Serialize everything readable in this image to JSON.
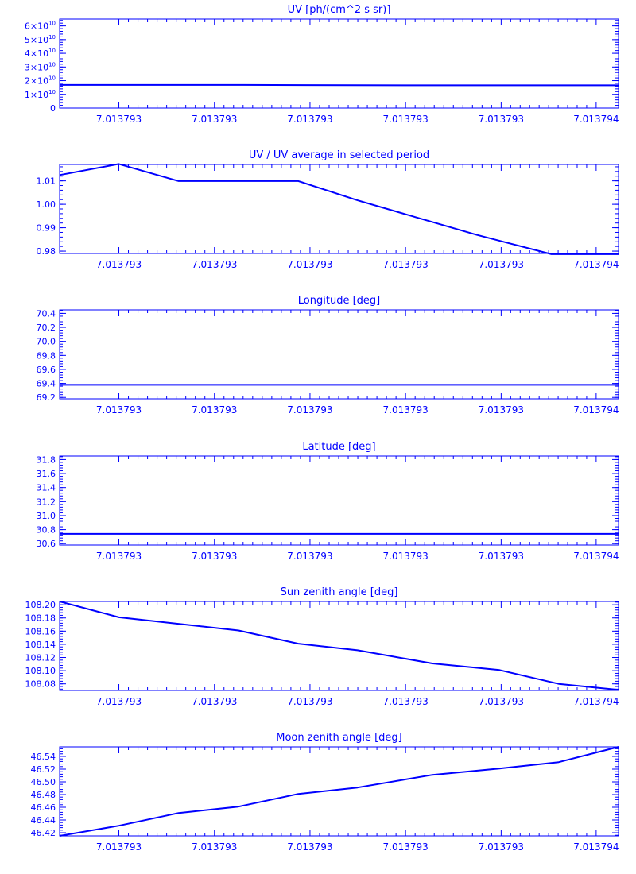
{
  "style": {
    "color": "#0000ff",
    "background": "#ffffff"
  },
  "chart_data": [
    {
      "type": "line",
      "title": "UV [ph/(cm^2 s sr)]",
      "xlabel": "",
      "ylabel": "",
      "x_tick_labels": [
        "7.013793",
        "7.013793",
        "7.013793",
        "7.013793",
        "7.013793",
        "7.013794"
      ],
      "ylim": [
        0,
        65000000000
      ],
      "y_ticks": [
        0,
        10000000000,
        20000000000,
        30000000000,
        40000000000,
        50000000000,
        60000000000
      ],
      "y_tick_labels": [
        {
          "base": "0",
          "exp": ""
        },
        {
          "base": "1×10",
          "exp": "10"
        },
        {
          "base": "2×10",
          "exp": "10"
        },
        {
          "base": "3×10",
          "exp": "10"
        },
        {
          "base": "4×10",
          "exp": "10"
        },
        {
          "base": "5×10",
          "exp": "10"
        },
        {
          "base": "6×10",
          "exp": "10"
        }
      ],
      "x": [
        0,
        0.33,
        0.63,
        1.0
      ],
      "y": [
        16900000000,
        16900000000,
        16600000000,
        16600000000
      ]
    },
    {
      "type": "line",
      "title": "UV / UV average in selected period",
      "xlabel": "",
      "ylabel": "",
      "x_tick_labels": [
        "7.013793",
        "7.013793",
        "7.013793",
        "7.013793",
        "7.013793",
        "7.013794"
      ],
      "ylim": [
        0.979,
        1.017
      ],
      "y_ticks": [
        0.98,
        0.99,
        1.0,
        1.01
      ],
      "y_tick_labels": [
        {
          "base": "0.98",
          "exp": ""
        },
        {
          "base": "0.99",
          "exp": ""
        },
        {
          "base": "1.00",
          "exp": ""
        },
        {
          "base": "1.01",
          "exp": ""
        }
      ],
      "x": [
        0,
        0.106,
        0.213,
        0.427,
        0.533,
        0.64,
        0.747,
        0.88,
        1.0
      ],
      "y": [
        1.0125,
        1.0172,
        1.0099,
        1.0099,
        1.0017,
        0.9943,
        0.9869,
        0.9787,
        0.9787
      ]
    },
    {
      "type": "line",
      "title": "Longitude [deg]",
      "xlabel": "",
      "ylabel": "",
      "x_tick_labels": [
        "7.013793",
        "7.013793",
        "7.013793",
        "7.013793",
        "7.013793",
        "7.013794"
      ],
      "ylim": [
        69.18,
        70.45
      ],
      "y_ticks": [
        69.2,
        69.4,
        69.6,
        69.8,
        70.0,
        70.2,
        70.4
      ],
      "y_tick_labels": [
        {
          "base": "69.2",
          "exp": ""
        },
        {
          "base": "69.4",
          "exp": ""
        },
        {
          "base": "69.6",
          "exp": ""
        },
        {
          "base": "69.8",
          "exp": ""
        },
        {
          "base": "70.0",
          "exp": ""
        },
        {
          "base": "70.2",
          "exp": ""
        },
        {
          "base": "70.4",
          "exp": ""
        }
      ],
      "x": [
        0,
        1.0
      ],
      "y": [
        69.38,
        69.38
      ]
    },
    {
      "type": "line",
      "title": "Latitude [deg]",
      "xlabel": "",
      "ylabel": "",
      "x_tick_labels": [
        "7.013793",
        "7.013793",
        "7.013793",
        "7.013793",
        "7.013793",
        "7.013794"
      ],
      "ylim": [
        30.58,
        31.85
      ],
      "y_ticks": [
        30.6,
        30.8,
        31.0,
        31.2,
        31.4,
        31.6,
        31.8
      ],
      "y_tick_labels": [
        {
          "base": "30.6",
          "exp": ""
        },
        {
          "base": "30.8",
          "exp": ""
        },
        {
          "base": "31.0",
          "exp": ""
        },
        {
          "base": "31.2",
          "exp": ""
        },
        {
          "base": "31.4",
          "exp": ""
        },
        {
          "base": "31.6",
          "exp": ""
        },
        {
          "base": "31.8",
          "exp": ""
        }
      ],
      "x": [
        0,
        1.0
      ],
      "y": [
        30.74,
        30.74
      ]
    },
    {
      "type": "line",
      "title": "Sun zenith angle [deg]",
      "xlabel": "",
      "ylabel": "",
      "x_tick_labels": [
        "7.013793",
        "7.013793",
        "7.013793",
        "7.013793",
        "7.013793",
        "7.013794"
      ],
      "ylim": [
        108.07,
        108.205
      ],
      "y_ticks": [
        108.08,
        108.1,
        108.12,
        108.14,
        108.16,
        108.18,
        108.2
      ],
      "y_tick_labels": [
        {
          "base": "108.08",
          "exp": ""
        },
        {
          "base": "108.10",
          "exp": ""
        },
        {
          "base": "108.12",
          "exp": ""
        },
        {
          "base": "108.14",
          "exp": ""
        },
        {
          "base": "108.16",
          "exp": ""
        },
        {
          "base": "108.18",
          "exp": ""
        },
        {
          "base": "108.20",
          "exp": ""
        }
      ],
      "x": [
        0,
        0.106,
        0.32,
        0.427,
        0.533,
        0.667,
        0.787,
        0.893,
        1.0
      ],
      "y": [
        108.205,
        108.181,
        108.161,
        108.141,
        108.131,
        108.111,
        108.101,
        108.08,
        108.071
      ]
    },
    {
      "type": "line",
      "title": "Moon zenith angle [deg]",
      "xlabel": "",
      "ylabel": "",
      "x_tick_labels": [
        "7.013793",
        "7.013793",
        "7.013793",
        "7.013793",
        "7.013793",
        "7.013794"
      ],
      "ylim": [
        46.415,
        46.555
      ],
      "y_ticks": [
        46.42,
        46.44,
        46.46,
        46.48,
        46.5,
        46.52,
        46.54
      ],
      "y_tick_labels": [
        {
          "base": "46.42",
          "exp": ""
        },
        {
          "base": "46.44",
          "exp": ""
        },
        {
          "base": "46.46",
          "exp": ""
        },
        {
          "base": "46.48",
          "exp": ""
        },
        {
          "base": "46.50",
          "exp": ""
        },
        {
          "base": "46.52",
          "exp": ""
        },
        {
          "base": "46.54",
          "exp": ""
        }
      ],
      "x": [
        0,
        0.106,
        0.213,
        0.32,
        0.427,
        0.533,
        0.667,
        0.787,
        0.893,
        1.0
      ],
      "y": [
        46.415,
        46.431,
        46.451,
        46.461,
        46.481,
        46.491,
        46.511,
        46.521,
        46.531,
        46.555
      ]
    }
  ]
}
